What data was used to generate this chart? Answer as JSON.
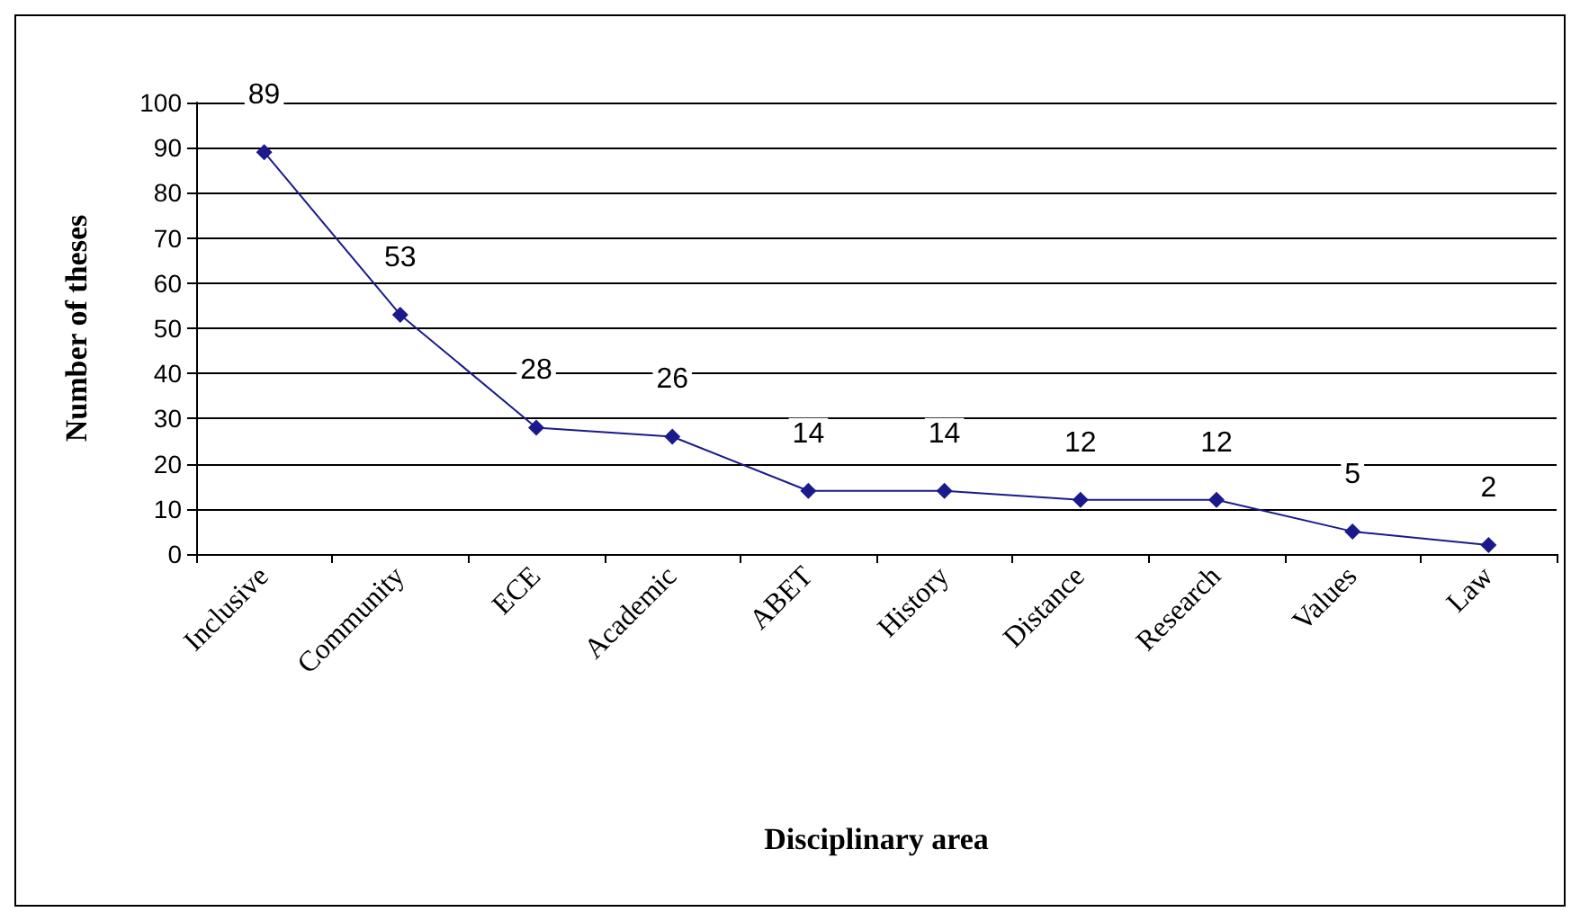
{
  "chart_data": {
    "type": "line",
    "xlabel": "Disciplinary area",
    "ylabel": "Number of theses",
    "categories": [
      "Inclusive",
      "Community",
      "ECE",
      "Academic",
      "ABET",
      "History",
      "Distance",
      "Research",
      "Values",
      "Law"
    ],
    "series": [
      {
        "color": "#1a1a8c",
        "values": [
          89,
          53,
          28,
          26,
          14,
          14,
          12,
          12,
          5,
          2
        ]
      }
    ],
    "ylim": [
      0,
      100
    ],
    "yticks": [
      0,
      10,
      20,
      30,
      40,
      50,
      60,
      70,
      80,
      90,
      100
    ],
    "grid": "y",
    "data_labels": true,
    "marker": "diamond",
    "line_style": "solid"
  }
}
